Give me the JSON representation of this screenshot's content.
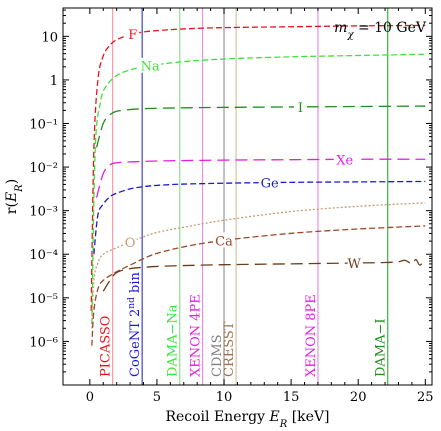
{
  "chart_data": {
    "type": "line",
    "title": "",
    "xlabel": "Recoil Energy  E_R [keV]",
    "ylabel": "r(E_R)",
    "annotation": "m_χ = 10 GeV",
    "xlim": [
      -2,
      25.5
    ],
    "ylim_log10": [
      -7,
      1.65
    ],
    "x_ticks": [
      0,
      5,
      10,
      15,
      20,
      25
    ],
    "x_tick_labels": [
      "0",
      "5",
      "10",
      "15",
      "20",
      "25"
    ],
    "y_ticks_log10": [
      1,
      0,
      -1,
      -2,
      -3,
      -4,
      -5,
      -6
    ],
    "y_tick_labels": [
      "10",
      "1",
      "10⁻¹",
      "10⁻²",
      "10⁻³",
      "10⁻⁴",
      "10⁻⁵",
      "10⁻⁶"
    ],
    "grid": false,
    "series": [
      {
        "name": "F",
        "color": "#e8141c",
        "dash": "6,3",
        "label_x": 3.2,
        "label_text": "F",
        "x": [
          0.1,
          0.3,
          0.6,
          1,
          1.5,
          2,
          3,
          4,
          5,
          7,
          10,
          15,
          20,
          25
        ],
        "log10_y": [
          -5.3,
          -1.6,
          0.0,
          0.55,
          0.8,
          0.92,
          1.04,
          1.1,
          1.13,
          1.17,
          1.2,
          1.22,
          1.24,
          1.25
        ]
      },
      {
        "name": "Na",
        "color": "#3fe23b",
        "dash": "6,3",
        "label_x": 4.5,
        "label_text": "Na",
        "x": [
          0.15,
          0.4,
          0.8,
          1.2,
          2,
          3,
          4,
          5,
          7,
          10,
          15,
          20,
          25
        ],
        "log10_y": [
          -5.6,
          -1.6,
          -0.5,
          -0.15,
          0.1,
          0.23,
          0.3,
          0.35,
          0.42,
          0.48,
          0.53,
          0.56,
          0.59
        ]
      },
      {
        "name": "I",
        "color": "#1e8f1e",
        "dash": "12,6",
        "label_x": 15.7,
        "label_text": "I",
        "x": [
          0.5,
          1,
          1.5,
          2,
          3,
          4,
          5,
          7,
          10,
          15,
          20,
          25
        ],
        "log10_y": [
          -1.55,
          -1.0,
          -0.8,
          -0.72,
          -0.68,
          -0.66,
          -0.65,
          -0.64,
          -0.63,
          -0.62,
          -0.61,
          -0.6
        ]
      },
      {
        "name": "Xe",
        "color": "#e020e0",
        "dash": "12,6",
        "label_x": 19.0,
        "label_text": "Xe",
        "x": [
          0.5,
          1,
          1.5,
          2,
          3,
          4,
          5,
          7,
          10,
          15,
          20,
          25
        ],
        "log10_y": [
          -2.7,
          -2.15,
          -1.95,
          -1.9,
          -1.88,
          -1.87,
          -1.86,
          -1.85,
          -1.84,
          -1.83,
          -1.82,
          -1.82
        ]
      },
      {
        "name": "Ge",
        "color": "#1a1ad6",
        "dash": "6,3",
        "label_x": 13.4,
        "label_text": "Ge",
        "x": [
          0.3,
          0.6,
          1,
          1.5,
          2,
          3,
          4,
          5,
          7,
          10,
          15,
          20,
          25
        ],
        "log10_y": [
          -4.0,
          -3.1,
          -2.85,
          -2.68,
          -2.6,
          -2.5,
          -2.45,
          -2.42,
          -2.39,
          -2.37,
          -2.35,
          -2.34,
          -2.33
        ]
      },
      {
        "name": "O",
        "color": "#c89a72",
        "dash": "2,2",
        "label_x": 3.0,
        "label_text": "O",
        "x": [
          0.15,
          0.3,
          0.6,
          1,
          2,
          3,
          4,
          5,
          7,
          10,
          15,
          20,
          25
        ],
        "log10_y": [
          -5.7,
          -4.6,
          -4.2,
          -4.0,
          -3.85,
          -3.72,
          -3.6,
          -3.5,
          -3.38,
          -3.22,
          -3.02,
          -2.9,
          -2.82
        ]
      },
      {
        "name": "Ca",
        "color": "#9b4a26",
        "dash": "6,3",
        "label_x": 10.0,
        "label_text": "Ca",
        "x": [
          0.15,
          0.3,
          0.6,
          1,
          2,
          3,
          4,
          5,
          7,
          10,
          15,
          20,
          25
        ],
        "log10_y": [
          -6.1,
          -5.3,
          -4.8,
          -4.6,
          -4.4,
          -4.25,
          -4.1,
          -3.98,
          -3.83,
          -3.68,
          -3.52,
          -3.42,
          -3.35
        ]
      },
      {
        "name": "W",
        "color": "#6b3d1a",
        "dash": "12,6",
        "label_x": 19.7,
        "label_text": "W",
        "x": [
          1,
          1.5,
          2,
          3,
          4,
          5,
          7,
          10,
          15,
          20,
          22,
          23,
          23.5,
          24,
          24.3,
          24.6,
          25
        ],
        "log10_y": [
          -4.85,
          -4.6,
          -4.42,
          -4.33,
          -4.3,
          -4.28,
          -4.26,
          -4.24,
          -4.22,
          -4.2,
          -4.19,
          -4.17,
          -4.14,
          -4.22,
          -4.12,
          -4.25,
          -4.1
        ]
      }
    ],
    "threshold_lines": [
      {
        "name": "PICASSO",
        "label": "PICASSO",
        "x": 1.7,
        "color": "#f59aa8",
        "label_color": "#e8141c"
      },
      {
        "name": "CoGeNT 2nd bin",
        "label": "CoGeNT 2nd bin",
        "x": 3.9,
        "color": "#4040c8",
        "label_color": "#1a1ad6"
      },
      {
        "name": "DAMA–Na",
        "label": "DAMA−Na",
        "x": 6.7,
        "color": "#8fe08f",
        "label_color": "#3fe23b"
      },
      {
        "name": "XENON 4PE",
        "label": "XENON 4PE",
        "x": 8.4,
        "color": "#e890e8",
        "label_color": "#e020e0"
      },
      {
        "name": "CDMS",
        "label": "CDMS",
        "x": 10.0,
        "color": "#9a9a9a",
        "label_color": "#808080"
      },
      {
        "name": "CRESST",
        "label": "CRESST",
        "x": 10.9,
        "color": "#d8c0a0",
        "label_color": "#a07050"
      },
      {
        "name": "XENON 8PE",
        "label": "XENON 8PE",
        "x": 17.0,
        "color": "#e890e8",
        "label_color": "#e020e0"
      },
      {
        "name": "DAMA–I",
        "label": "DAMA−I",
        "x": 22.2,
        "color": "#40b040",
        "label_color": "#1e8f1e"
      }
    ]
  }
}
